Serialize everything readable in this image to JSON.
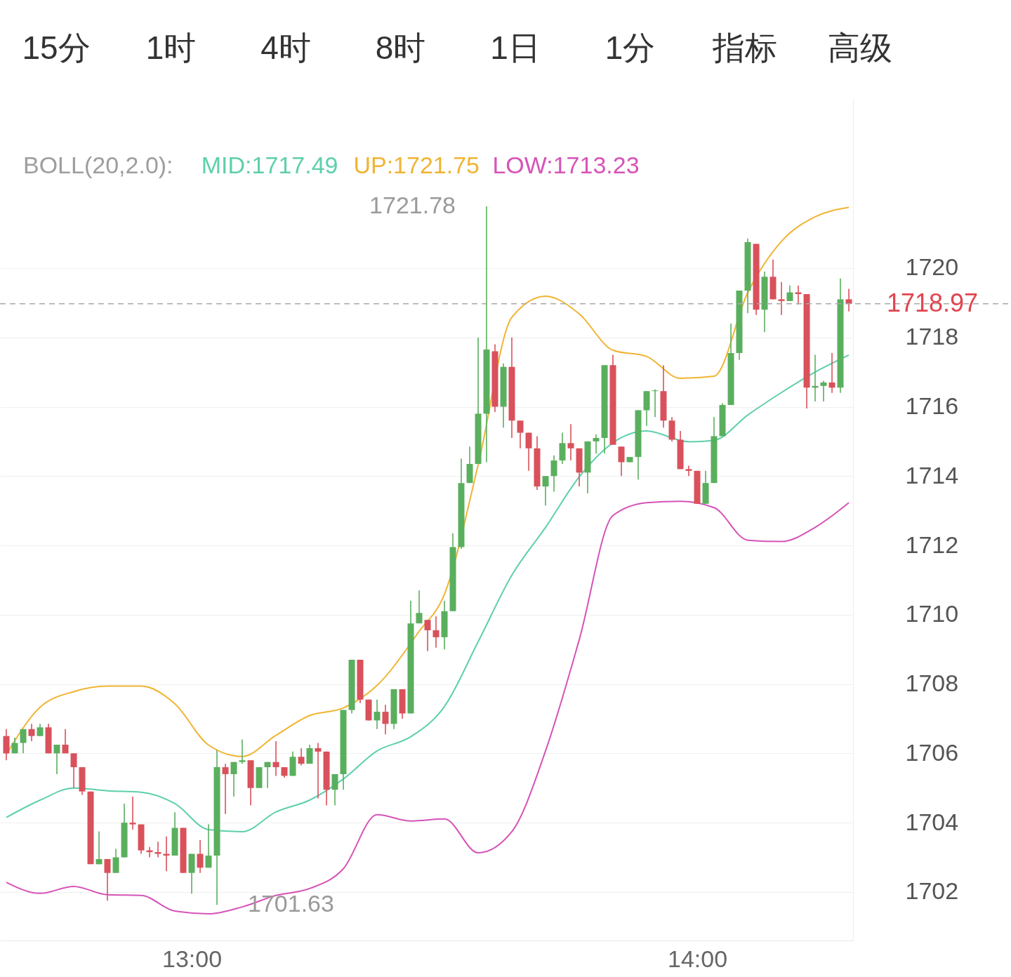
{
  "chart_data": {
    "type": "candlestick",
    "legend_title": "BOLL(20,2.0):",
    "legend": "top",
    "grid": "y",
    "xlim": [
      12.6208,
      14.3083
    ],
    "xticks": [
      {
        "value": 13,
        "label": "13:00"
      },
      {
        "value": 14,
        "label": "14:00"
      }
    ],
    "ylim": [
      1700.6,
      1724.9
    ],
    "yticks": [
      1702,
      1704,
      1706,
      1708,
      1710,
      1712,
      1714,
      1716,
      1718,
      1720
    ],
    "x": [
      12.6333,
      12.65,
      12.6667,
      12.6833,
      12.7,
      12.7167,
      12.7333,
      12.75,
      12.7667,
      12.7833,
      12.8,
      12.8167,
      12.8333,
      12.85,
      12.8667,
      12.8833,
      12.9,
      12.9167,
      12.9333,
      12.95,
      12.9667,
      12.9833,
      13,
      13.0167,
      13.0333,
      13.05,
      13.0667,
      13.0833,
      13.1,
      13.1167,
      13.1333,
      13.15,
      13.1667,
      13.1833,
      13.2,
      13.2167,
      13.2333,
      13.25,
      13.2667,
      13.2833,
      13.3,
      13.3167,
      13.3333,
      13.35,
      13.3667,
      13.3833,
      13.4,
      13.4167,
      13.4333,
      13.45,
      13.4667,
      13.4833,
      13.5,
      13.5167,
      13.5333,
      13.55,
      13.5667,
      13.5833,
      13.6,
      13.6167,
      13.6333,
      13.65,
      13.6667,
      13.6833,
      13.7,
      13.7167,
      13.7333,
      13.75,
      13.7667,
      13.7833,
      13.8,
      13.8167,
      13.8333,
      13.85,
      13.8667,
      13.8833,
      13.9,
      13.9167,
      13.9333,
      13.95,
      13.9667,
      13.9833,
      14,
      14.0167,
      14.0333,
      14.05,
      14.0667,
      14.0833,
      14.1,
      14.1167,
      14.1333,
      14.15,
      14.1667,
      14.1833,
      14.2,
      14.2167,
      14.2333,
      14.25,
      14.2667,
      14.2833,
      14.3
    ],
    "ohlc": [
      [
        1706.5,
        1706.7,
        1705.8,
        1706.0
      ],
      [
        1706.0,
        1706.45,
        1706.0,
        1706.3
      ],
      [
        1706.3,
        1706.7,
        1706.0,
        1706.7
      ],
      [
        1706.7,
        1706.85,
        1706.35,
        1706.5
      ],
      [
        1706.5,
        1706.85,
        1706.5,
        1706.75
      ],
      [
        1706.75,
        1706.85,
        1706.0,
        1706.0
      ],
      [
        1706.0,
        1706.25,
        1705.4,
        1706.25
      ],
      [
        1706.25,
        1706.7,
        1706.0,
        1706.0
      ],
      [
        1706.0,
        1706.0,
        1705.0,
        1705.6
      ],
      [
        1705.6,
        1705.6,
        1704.8,
        1704.9
      ],
      [
        1704.9,
        1704.9,
        1702.8,
        1702.8
      ],
      [
        1702.8,
        1703.75,
        1702.8,
        1702.95
      ],
      [
        1702.95,
        1702.95,
        1701.75,
        1702.55
      ],
      [
        1702.55,
        1703.25,
        1702.55,
        1703.0
      ],
      [
        1703.0,
        1704.55,
        1703.0,
        1704.0
      ],
      [
        1704.0,
        1704.75,
        1703.8,
        1703.95
      ],
      [
        1703.95,
        1703.95,
        1703.1,
        1703.2
      ],
      [
        1703.2,
        1703.3,
        1703.0,
        1703.15
      ],
      [
        1703.15,
        1703.45,
        1703.0,
        1703.1
      ],
      [
        1703.1,
        1703.6,
        1702.6,
        1703.05
      ],
      [
        1703.05,
        1704.3,
        1703.05,
        1703.85
      ],
      [
        1703.85,
        1703.85,
        1702.55,
        1702.55
      ],
      [
        1702.55,
        1703.1,
        1701.95,
        1703.1
      ],
      [
        1703.1,
        1703.5,
        1702.55,
        1702.7
      ],
      [
        1702.7,
        1703.95,
        1702.7,
        1703.05
      ],
      [
        1703.05,
        1706.1,
        1701.63,
        1705.6
      ],
      [
        1705.6,
        1705.7,
        1704.25,
        1705.4
      ],
      [
        1705.4,
        1705.75,
        1704.75,
        1705.75
      ],
      [
        1705.75,
        1706.4,
        1705.7,
        1705.8
      ],
      [
        1705.8,
        1705.8,
        1704.5,
        1705.0
      ],
      [
        1705.0,
        1705.6,
        1705.0,
        1705.6
      ],
      [
        1705.6,
        1705.75,
        1705.0,
        1705.75
      ],
      [
        1705.75,
        1706.35,
        1705.35,
        1705.6
      ],
      [
        1705.6,
        1705.6,
        1705.3,
        1705.35
      ],
      [
        1705.35,
        1706.05,
        1705.35,
        1705.9
      ],
      [
        1705.9,
        1706.15,
        1705.65,
        1705.7
      ],
      [
        1705.7,
        1706.25,
        1705.7,
        1706.15
      ],
      [
        1706.15,
        1706.3,
        1704.7,
        1706.05
      ],
      [
        1706.05,
        1706.05,
        1704.5,
        1704.95
      ],
      [
        1704.95,
        1705.4,
        1704.5,
        1705.4
      ],
      [
        1705.4,
        1707.25,
        1704.95,
        1707.25
      ],
      [
        1707.25,
        1708.7,
        1707.15,
        1708.7
      ],
      [
        1708.7,
        1708.7,
        1707.45,
        1707.55
      ],
      [
        1707.55,
        1707.55,
        1706.95,
        1706.95
      ],
      [
        1706.95,
        1707.55,
        1706.7,
        1707.2
      ],
      [
        1707.2,
        1707.4,
        1706.55,
        1706.85
      ],
      [
        1706.85,
        1707.85,
        1706.7,
        1707.85
      ],
      [
        1707.85,
        1707.85,
        1707.0,
        1707.15
      ],
      [
        1707.15,
        1710.4,
        1707.15,
        1709.75
      ],
      [
        1709.75,
        1710.7,
        1709.75,
        1710.05
      ],
      [
        1709.85,
        1709.85,
        1708.95,
        1709.55
      ],
      [
        1709.55,
        1709.95,
        1709.05,
        1709.35
      ],
      [
        1709.35,
        1710.4,
        1709.0,
        1710.1
      ],
      [
        1710.1,
        1712.35,
        1710.1,
        1711.95
      ],
      [
        1711.95,
        1714.5,
        1711.9,
        1713.8
      ],
      [
        1713.8,
        1714.85,
        1713.8,
        1714.35
      ],
      [
        1714.35,
        1718.0,
        1714.35,
        1715.8
      ],
      [
        1715.8,
        1721.78,
        1714.4,
        1717.65
      ],
      [
        1717.6,
        1717.8,
        1715.85,
        1716.0
      ],
      [
        1716.0,
        1717.25,
        1715.4,
        1717.15
      ],
      [
        1717.15,
        1718.0,
        1715.1,
        1715.6
      ],
      [
        1715.6,
        1715.6,
        1714.8,
        1715.25
      ],
      [
        1715.25,
        1715.25,
        1714.15,
        1714.8
      ],
      [
        1714.8,
        1715.15,
        1713.6,
        1713.7
      ],
      [
        1713.7,
        1714.0,
        1713.15,
        1714.0
      ],
      [
        1714.0,
        1714.6,
        1713.55,
        1714.45
      ],
      [
        1714.45,
        1715.25,
        1714.35,
        1714.95
      ],
      [
        1714.95,
        1715.5,
        1714.45,
        1714.8
      ],
      [
        1714.8,
        1714.8,
        1713.7,
        1714.1
      ],
      [
        1714.1,
        1715.0,
        1713.5,
        1715.0
      ],
      [
        1715.0,
        1715.2,
        1714.65,
        1715.1
      ],
      [
        1715.1,
        1717.2,
        1714.65,
        1717.2
      ],
      [
        1717.2,
        1717.5,
        1714.9,
        1714.9
      ],
      [
        1714.85,
        1714.85,
        1714.0,
        1714.4
      ],
      [
        1714.4,
        1714.55,
        1714.4,
        1714.55
      ],
      [
        1714.55,
        1715.9,
        1713.9,
        1715.9
      ],
      [
        1715.9,
        1716.45,
        1715.45,
        1716.45
      ],
      [
        1716.45,
        1716.5,
        1715.7,
        1716.47
      ],
      [
        1716.45,
        1717.2,
        1715.4,
        1715.6
      ],
      [
        1715.6,
        1715.7,
        1715.0,
        1715.05
      ],
      [
        1715.05,
        1715.3,
        1714.2,
        1714.2
      ],
      [
        1714.2,
        1714.3,
        1714.0,
        1714.15
      ],
      [
        1714.15,
        1714.15,
        1713.2,
        1713.2
      ],
      [
        1713.2,
        1714.15,
        1713.2,
        1713.8
      ],
      [
        1713.8,
        1715.7,
        1713.8,
        1715.15
      ],
      [
        1715.15,
        1716.1,
        1715.15,
        1716.05
      ],
      [
        1716.05,
        1718.4,
        1716.05,
        1717.55
      ],
      [
        1717.55,
        1719.35,
        1717.35,
        1719.35
      ],
      [
        1719.35,
        1720.85,
        1718.7,
        1720.75
      ],
      [
        1720.7,
        1720.7,
        1718.65,
        1718.8
      ],
      [
        1718.8,
        1719.9,
        1718.15,
        1719.75
      ],
      [
        1719.75,
        1720.25,
        1719.1,
        1719.1
      ],
      [
        1719.1,
        1719.6,
        1718.65,
        1719.05
      ],
      [
        1719.05,
        1719.5,
        1719.05,
        1719.3
      ],
      [
        1719.3,
        1719.5,
        1718.95,
        1719.25
      ],
      [
        1719.25,
        1719.25,
        1715.95,
        1716.55
      ],
      [
        1716.55,
        1717.5,
        1716.15,
        1716.6
      ],
      [
        1716.6,
        1716.75,
        1716.15,
        1716.7
      ],
      [
        1716.7,
        1717.55,
        1716.4,
        1716.55
      ],
      [
        1716.55,
        1719.7,
        1716.4,
        1719.1
      ],
      [
        1719.1,
        1719.4,
        1718.75,
        1718.97
      ]
    ],
    "colors": [
      "#d9515b",
      "#5aaf5e",
      "#5aaf5e",
      "#d9515b",
      "#5aaf5e",
      "#d9515b",
      "#5aaf5e",
      "#d9515b",
      "#d9515b",
      "#d9515b",
      "#d9515b",
      "#5aaf5e",
      "#d9515b",
      "#5aaf5e",
      "#5aaf5e",
      "#d9515b",
      "#d9515b",
      "#d9515b",
      "#d9515b",
      "#d9515b",
      "#5aaf5e",
      "#d9515b",
      "#5aaf5e",
      "#d9515b",
      "#5aaf5e",
      "#5aaf5e",
      "#d9515b",
      "#5aaf5e",
      "#5aaf5e",
      "#d9515b",
      "#5aaf5e",
      "#5aaf5e",
      "#d9515b",
      "#d9515b",
      "#5aaf5e",
      "#d9515b",
      "#5aaf5e",
      "#d9515b",
      "#d9515b",
      "#5aaf5e",
      "#5aaf5e",
      "#5aaf5e",
      "#d9515b",
      "#d9515b",
      "#5aaf5e",
      "#d9515b",
      "#5aaf5e",
      "#d9515b",
      "#5aaf5e",
      "#5aaf5e",
      "#d9515b",
      "#d9515b",
      "#5aaf5e",
      "#5aaf5e",
      "#5aaf5e",
      "#5aaf5e",
      "#5aaf5e",
      "#5aaf5e",
      "#d9515b",
      "#5aaf5e",
      "#d9515b",
      "#d9515b",
      "#d9515b",
      "#d9515b",
      "#5aaf5e",
      "#5aaf5e",
      "#5aaf5e",
      "#d9515b",
      "#d9515b",
      "#5aaf5e",
      "#5aaf5e",
      "#5aaf5e",
      "#d9515b",
      "#d9515b",
      "#5aaf5e",
      "#5aaf5e",
      "#5aaf5e",
      "#5aaf5e",
      "#d9515b",
      "#d9515b",
      "#d9515b",
      "#d9515b",
      "#d9515b",
      "#5aaf5e",
      "#5aaf5e",
      "#5aaf5e",
      "#5aaf5e",
      "#5aaf5e",
      "#5aaf5e",
      "#d9515b",
      "#5aaf5e",
      "#d9515b",
      "#d9515b",
      "#5aaf5e",
      "#d9515b",
      "#d9515b",
      "#5aaf5e",
      "#5aaf5e",
      "#d9515b",
      "#5aaf5e",
      "#d9515b"
    ],
    "series": [
      {
        "name": "MID:1717.49",
        "color": "#5ecfac",
        "type": "line",
        "x": [
          12.6333,
          12.7,
          12.7667,
          12.8333,
          12.9,
          12.9667,
          13.0333,
          13.1,
          13.1667,
          13.2333,
          13.3,
          13.3667,
          13.4333,
          13.5,
          13.5667,
          13.6333,
          13.7,
          13.7667,
          13.85,
          13.9,
          13.9833,
          14.0333,
          14.1,
          14.1667,
          14.2333,
          14.3
        ],
        "values": [
          1704.15,
          1704.65,
          1705.0,
          1704.92,
          1704.88,
          1704.55,
          1703.8,
          1703.74,
          1704.31,
          1704.65,
          1705.26,
          1706.07,
          1706.48,
          1707.35,
          1709.22,
          1711.14,
          1712.52,
          1713.98,
          1715.11,
          1715.3,
          1714.99,
          1715.03,
          1715.76,
          1716.41,
          1717.0,
          1717.49
        ]
      },
      {
        "name": "UP:1721.75",
        "color": "#f0b433",
        "type": "line",
        "x": [
          12.6333,
          12.7,
          12.7667,
          12.8333,
          12.9,
          12.9667,
          13.0333,
          13.1,
          13.1667,
          13.2333,
          13.3,
          13.3667,
          13.45,
          13.5,
          13.5667,
          13.6333,
          13.7,
          13.7667,
          13.8333,
          13.9,
          13.9667,
          14.0333,
          14.1,
          14.1667,
          14.2333,
          14.3
        ],
        "values": [
          1705.97,
          1707.33,
          1707.78,
          1707.94,
          1707.94,
          1707.43,
          1706.24,
          1705.91,
          1706.52,
          1707.09,
          1707.31,
          1707.96,
          1709.52,
          1710.59,
          1714.32,
          1718.58,
          1719.19,
          1718.68,
          1717.63,
          1717.45,
          1716.82,
          1716.88,
          1719.29,
          1720.77,
          1721.48,
          1721.75
        ]
      },
      {
        "name": "LOW:1713.23",
        "color": "#d653b8",
        "type": "line",
        "x": [
          12.6333,
          12.7,
          12.7667,
          12.8333,
          12.9,
          12.9667,
          13.0333,
          13.1,
          13.1667,
          13.2333,
          13.3,
          13.3667,
          13.4333,
          13.5,
          13.5667,
          13.6333,
          13.7,
          13.7667,
          13.8333,
          13.9,
          13.9667,
          14.0333,
          14.1,
          14.1667,
          14.2333,
          14.3
        ],
        "values": [
          1702.28,
          1701.96,
          1702.16,
          1701.92,
          1701.9,
          1701.45,
          1701.37,
          1701.57,
          1701.9,
          1702.1,
          1702.67,
          1704.23,
          1704.05,
          1704.11,
          1703.13,
          1703.74,
          1706.07,
          1709.28,
          1712.86,
          1713.23,
          1713.27,
          1713.09,
          1712.15,
          1712.11,
          1712.52,
          1713.23
        ]
      }
    ],
    "ref_lines": [
      {
        "axis": "y",
        "value": 1718.97,
        "label": "1718.97",
        "color": "#a8a8a8",
        "line_style": "dashed"
      }
    ],
    "annotations": [
      "15分",
      "1时",
      "4时",
      "8时",
      "1日",
      "1分",
      "指标",
      "高级",
      {
        "text": "1721.78",
        "x": 13.5833,
        "y": 1721.78
      },
      {
        "text": "1701.63",
        "x": 13.05,
        "y": 1701.63
      }
    ]
  }
}
